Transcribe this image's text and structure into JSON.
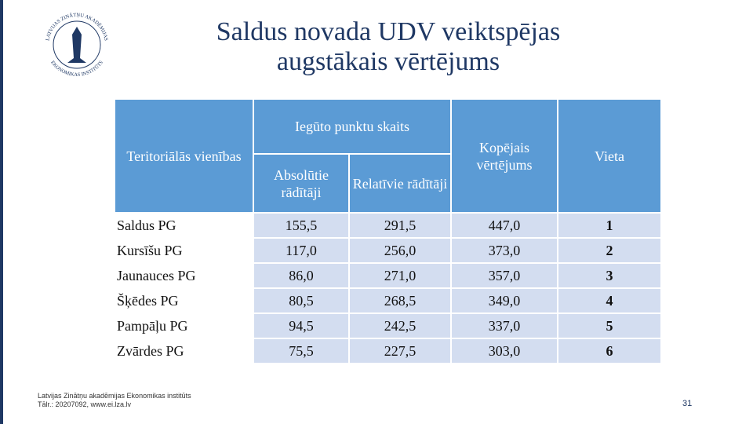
{
  "logo": {
    "ring_top": "LATVIJAS ZINĀTŅU AKADĒMIJAS",
    "ring_bottom": "EKONOMIKAS INSTITŪTS"
  },
  "header": {
    "title_line1": "Saldus novada UDV veiktspējas",
    "title_line2": "augstākais vērtējums"
  },
  "table": {
    "columns": {
      "unit": "Teritoriālās vienības",
      "points": "Iegūto punktu skaits",
      "absolute": "Absolūtie rādītāji",
      "relative": "Relatīvie rādītāji",
      "total": "Kopējais vērtējums",
      "rank": "Vieta"
    },
    "rows": [
      [
        "Saldus PG",
        "155,5",
        "291,5",
        "447,0",
        "1"
      ],
      [
        "Kursīšu PG",
        "117,0",
        "256,0",
        "373,0",
        "2"
      ],
      [
        "Jaunauces PG",
        "86,0",
        "271,0",
        "357,0",
        "3"
      ],
      [
        "Šķēdes PG",
        "80,5",
        "268,5",
        "349,0",
        "4"
      ],
      [
        "Pampāļu PG",
        "94,5",
        "242,5",
        "337,0",
        "5"
      ],
      [
        "Zvārdes PG",
        "75,5",
        "227,5",
        "303,0",
        "6"
      ]
    ]
  },
  "footer": {
    "line1": "Latvijas Zinātņu akadēmijas Ekonomikas institūts",
    "line2": "Tālr.: 20207092, www.ei.lza.lv",
    "page": "31"
  }
}
